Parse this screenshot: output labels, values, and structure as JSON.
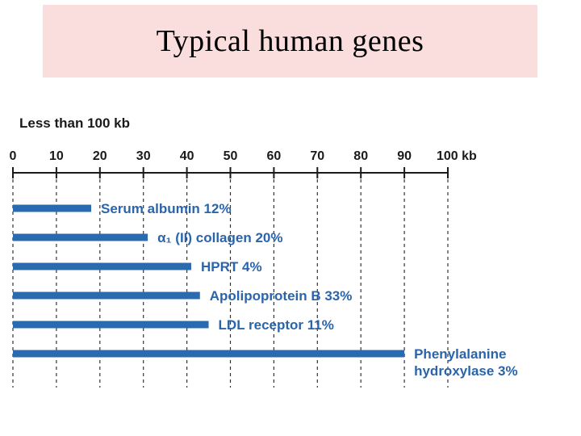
{
  "slide": {
    "title": "Typical human genes"
  },
  "chart_data": {
    "type": "bar",
    "orientation": "horizontal",
    "heading": "Less than 100 kb",
    "x_ticks": [
      "0",
      "10",
      "20",
      "30",
      "40",
      "50",
      "60",
      "70",
      "80",
      "90",
      "100 kb"
    ],
    "xlim": [
      0,
      100
    ],
    "grid": "dashed vertical",
    "categories": [
      "Serum albumin",
      "α₁ (II) collagen",
      "HPRT",
      "Apolipoprotein B",
      "LDL receptor",
      "Phenylalanine hydroxylase"
    ],
    "label_lines": [
      [
        "Serum albumin   12%"
      ],
      [
        "α₁ (II) collagen   20%"
      ],
      [
        "HPRT   4%"
      ],
      [
        "Apolipoprotein B   33%"
      ],
      [
        "LDL receptor   11%"
      ],
      [
        "Phenylalanine",
        "hydroxylase   3%"
      ]
    ],
    "values": [
      18,
      31,
      41,
      43,
      45,
      90
    ],
    "percent_labels": [
      "12%",
      "20%",
      "4%",
      "33%",
      "11%",
      "3%"
    ],
    "bar_color": "#2a6bb0",
    "label_color": "#2a64ab"
  }
}
